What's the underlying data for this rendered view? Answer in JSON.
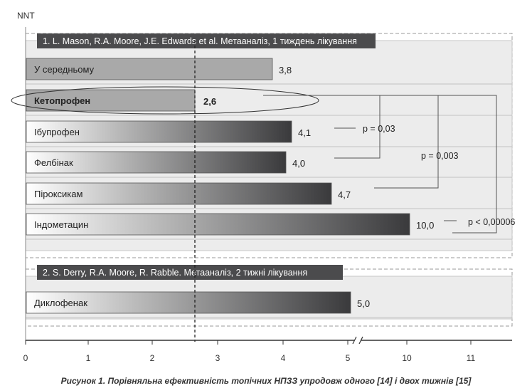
{
  "chart_data": {
    "type": "bar",
    "orientation": "horizontal",
    "ylabel": "NNT",
    "xticks": [
      "0",
      "1",
      "2",
      "3",
      "4",
      "5",
      "10",
      "11"
    ],
    "axis_break": "between 5 and 10",
    "reference_line": 2.6,
    "groups": [
      {
        "header": "1. L. Mason, R.A. Moore, J.E. Edwards et al. Метааналіз, 1 тиждень лікування",
        "bars": [
          {
            "label": "У середньому",
            "value": 3.8,
            "value_label": "3,8",
            "style": "flat"
          },
          {
            "label": "Кетопрофен",
            "value": 2.6,
            "value_label": "2,6",
            "style": "flat",
            "bold": true,
            "highlighted": true
          },
          {
            "label": "Ібупрофен",
            "value": 4.1,
            "value_label": "4,1",
            "style": "gradient"
          },
          {
            "label": "Фелбінак",
            "value": 4.0,
            "value_label": "4,0",
            "style": "gradient"
          },
          {
            "label": "Піроксикам",
            "value": 4.7,
            "value_label": "4,7",
            "style": "gradient"
          },
          {
            "label": "Індометацин",
            "value": 10.0,
            "value_label": "10,0",
            "style": "gradient"
          }
        ]
      },
      {
        "header": "2. S. Derry, R.A. Moore, R. Rabble. Метааналіз, 2 тижні лікування",
        "bars": [
          {
            "label": "Диклофенак",
            "value": 5.0,
            "value_label": "5,0",
            "style": "gradient"
          }
        ]
      }
    ],
    "annotations": [
      {
        "text": "p = 0,03",
        "compares": [
          "Кетопрофен",
          "Фелбінак"
        ]
      },
      {
        "text": "p = 0,003",
        "compares": [
          "Кетопрофен",
          "Піроксикам"
        ]
      },
      {
        "text": "p < 0,00006",
        "compares": [
          "Кетопрофен",
          "Індометацин"
        ]
      }
    ]
  },
  "caption": "Рисунок 1. Порівняльна ефективність топічних НПЗЗ упродовж одного [14] і двох тижнів [15]",
  "colors": {
    "panel_fill": "#ececec",
    "bar_flat": "#a9a9a9",
    "bar_dark": "#3a3a3c",
    "header_fill": "#4b4b4d"
  }
}
